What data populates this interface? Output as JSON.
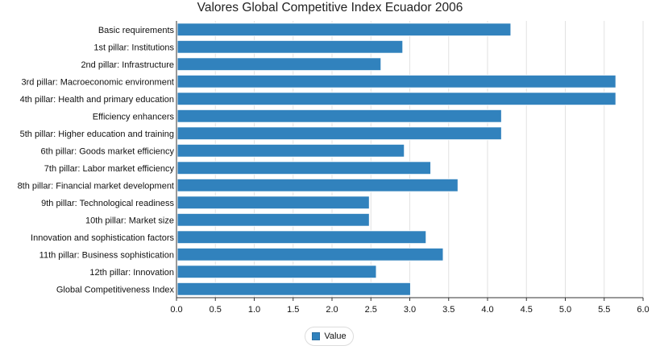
{
  "chart_data": {
    "type": "bar",
    "orientation": "horizontal",
    "title": "Valores Global Competitive Index Ecuador 2006",
    "xlabel": "",
    "ylabel": "",
    "xlim": [
      0,
      6.0
    ],
    "ticks": [
      "0.0",
      "0.5",
      "1.0",
      "1.5",
      "2.0",
      "2.5",
      "3.0",
      "3.5",
      "4.0",
      "4.5",
      "5.0",
      "5.5",
      "6.0"
    ],
    "grid": true,
    "legend_position": "bottom",
    "bar_color": "#3182bd",
    "categories": [
      "Basic requirements",
      "1st pillar: Institutions",
      "2nd pillar: Infrastructure",
      "3rd pillar: Macroeconomic environment",
      "4th pillar: Health and primary education",
      "Efficiency enhancers",
      "5th pillar: Higher education and training",
      "6th pillar: Goods market efficiency",
      "7th pillar: Labor market efficiency",
      "8th pillar: Financial market development",
      "9th pillar: Technological readiness",
      "10th pillar: Market size",
      "Innovation and sophistication factors",
      "11th pillar: Business sophistication",
      "12th pillar: Innovation",
      "Global Competitiveness Index"
    ],
    "series": [
      {
        "name": "Value",
        "values": [
          4.3,
          2.91,
          2.63,
          5.65,
          5.65,
          4.18,
          4.18,
          2.93,
          3.27,
          3.62,
          2.48,
          2.48,
          3.21,
          3.43,
          2.57,
          3.01
        ]
      }
    ]
  }
}
